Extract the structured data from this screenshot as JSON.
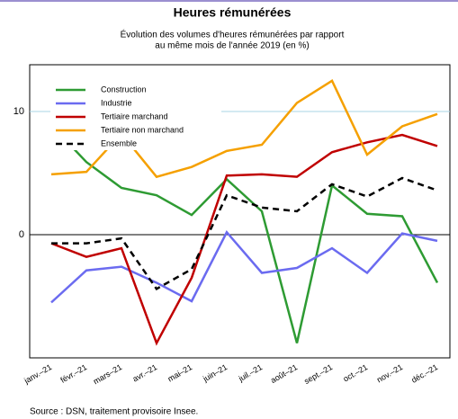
{
  "chart_data": {
    "type": "line",
    "title": "Heures rémunérées",
    "subtitle": [
      "Évolution des volumes d'heures rémunérées par rapport",
      "au même mois de l'année 2019 (en %)"
    ],
    "source": "Source : DSN, traitement provisoire Insee.",
    "categories": [
      "janv.–21",
      "févr.–21",
      "mars–21",
      "avr.–21",
      "mai–21",
      "juin–21",
      "juil.–21",
      "août–21",
      "sept.–21",
      "oct.–21",
      "nov.–21",
      "déc.–21"
    ],
    "series": [
      {
        "name": "Construction",
        "color": "#2e9b33",
        "values": [
          8.9,
          5.9,
          3.8,
          3.2,
          1.6,
          4.5,
          1.9,
          -8.8,
          4.0,
          1.7,
          1.5,
          -3.9
        ]
      },
      {
        "name": "Industrie",
        "color": "#6b6bf0",
        "values": [
          -5.5,
          -2.9,
          -2.6,
          -3.9,
          -5.4,
          0.2,
          -3.1,
          -2.7,
          -1.1,
          -3.1,
          0.1,
          -0.5
        ]
      },
      {
        "name": "Tertiaire marchand",
        "color": "#c00000",
        "values": [
          -0.7,
          -1.8,
          -1.1,
          -8.8,
          -3.5,
          4.8,
          4.9,
          4.7,
          6.7,
          7.5,
          8.1,
          7.2
        ]
      },
      {
        "name": "Tertiaire non marchand",
        "color": "#f5a000",
        "values": [
          4.9,
          5.1,
          8.2,
          4.7,
          5.5,
          6.8,
          7.3,
          10.7,
          12.5,
          6.5,
          8.8,
          9.8
        ]
      },
      {
        "name": "Ensemble",
        "color": "#000000",
        "dashed": true,
        "values": [
          -0.7,
          -0.7,
          -0.3,
          -4.4,
          -2.8,
          3.2,
          2.2,
          1.9,
          4.1,
          3.1,
          4.6,
          3.6
        ]
      }
    ],
    "ylim": [
      -10,
      13.8
    ],
    "yticks": [
      0,
      10
    ],
    "grid": true
  }
}
